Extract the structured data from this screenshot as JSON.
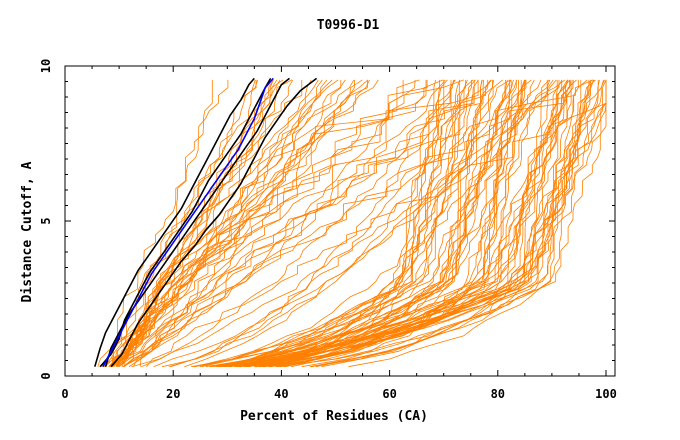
{
  "chart_data": {
    "type": "line",
    "title": "T0996-D1",
    "xlabel": "Percent of Residues (CA)",
    "ylabel": "Distance Cutoff, A",
    "xlim": [
      0,
      100
    ],
    "ylim": [
      0,
      10
    ],
    "x_ticks": [
      "0",
      "20",
      "40",
      "60",
      "80",
      "100"
    ],
    "y_ticks": [
      "0",
      "5",
      "10"
    ],
    "grid": false,
    "legend": "none",
    "colors": {
      "models": "#ff8000",
      "highlight_black": "#000000",
      "highlight_blue": "#0000ff",
      "axes": "#000000"
    },
    "highlighted_series": [
      {
        "color": "#000000",
        "points": [
          [
            5.5,
            0.3
          ],
          [
            6.5,
            0.9
          ],
          [
            7.5,
            1.4
          ],
          [
            9.0,
            1.9
          ],
          [
            10.5,
            2.4
          ],
          [
            12.0,
            2.9
          ],
          [
            13.5,
            3.4
          ],
          [
            15.5,
            3.9
          ],
          [
            17.5,
            4.4
          ],
          [
            19.5,
            4.9
          ],
          [
            21.5,
            5.4
          ],
          [
            23.0,
            5.9
          ],
          [
            24.5,
            6.4
          ],
          [
            26.0,
            6.9
          ],
          [
            27.5,
            7.4
          ],
          [
            29.0,
            7.9
          ],
          [
            30.5,
            8.4
          ],
          [
            32.5,
            8.9
          ],
          [
            34.0,
            9.4
          ],
          [
            35.0,
            9.6
          ]
        ]
      },
      {
        "color": "#000000",
        "points": [
          [
            7.5,
            0.3
          ],
          [
            8.5,
            0.9
          ],
          [
            10.0,
            1.4
          ],
          [
            11.5,
            1.9
          ],
          [
            13.5,
            2.4
          ],
          [
            15.5,
            2.9
          ],
          [
            17.5,
            3.4
          ],
          [
            19.5,
            3.9
          ],
          [
            21.5,
            4.4
          ],
          [
            23.5,
            4.9
          ],
          [
            25.5,
            5.4
          ],
          [
            27.5,
            5.9
          ],
          [
            29.5,
            6.4
          ],
          [
            31.5,
            6.9
          ],
          [
            33.5,
            7.4
          ],
          [
            35.5,
            7.9
          ],
          [
            37.0,
            8.4
          ],
          [
            38.5,
            8.9
          ],
          [
            40.0,
            9.4
          ],
          [
            41.5,
            9.6
          ]
        ]
      },
      {
        "color": "#000000",
        "points": [
          [
            6.5,
            0.3
          ],
          [
            8.5,
            0.7
          ],
          [
            10.0,
            1.2
          ],
          [
            11.0,
            1.8
          ],
          [
            12.5,
            2.3
          ],
          [
            14.0,
            2.8
          ],
          [
            15.5,
            3.3
          ],
          [
            17.5,
            3.8
          ],
          [
            19.5,
            4.3
          ],
          [
            21.5,
            4.8
          ],
          [
            23.5,
            5.3
          ],
          [
            25.0,
            5.8
          ],
          [
            26.5,
            6.3
          ],
          [
            28.5,
            6.8
          ],
          [
            30.5,
            7.3
          ],
          [
            32.5,
            7.8
          ],
          [
            34.0,
            8.3
          ],
          [
            35.5,
            8.8
          ],
          [
            37.0,
            9.3
          ],
          [
            38.0,
            9.6
          ]
        ]
      },
      {
        "color": "#000000",
        "points": [
          [
            8.5,
            0.3
          ],
          [
            10.5,
            0.7
          ],
          [
            12.0,
            1.2
          ],
          [
            13.5,
            1.7
          ],
          [
            15.5,
            2.2
          ],
          [
            17.5,
            2.7
          ],
          [
            19.5,
            3.2
          ],
          [
            21.5,
            3.7
          ],
          [
            24.0,
            4.2
          ],
          [
            26.0,
            4.7
          ],
          [
            28.5,
            5.2
          ],
          [
            30.5,
            5.7
          ],
          [
            32.5,
            6.2
          ],
          [
            34.0,
            6.7
          ],
          [
            35.5,
            7.2
          ],
          [
            37.0,
            7.7
          ],
          [
            39.0,
            8.2
          ],
          [
            41.0,
            8.7
          ],
          [
            43.5,
            9.2
          ],
          [
            46.5,
            9.6
          ]
        ]
      },
      {
        "color": "#0000ff",
        "points": [
          [
            7.0,
            0.3
          ],
          [
            8.5,
            0.8
          ],
          [
            10.0,
            1.3
          ],
          [
            11.5,
            1.8
          ],
          [
            13.0,
            2.3
          ],
          [
            14.5,
            2.8
          ],
          [
            16.0,
            3.3
          ],
          [
            18.0,
            3.8
          ],
          [
            20.0,
            4.3
          ],
          [
            22.0,
            4.8
          ],
          [
            24.0,
            5.3
          ],
          [
            26.0,
            5.8
          ],
          [
            28.0,
            6.3
          ],
          [
            30.0,
            6.8
          ],
          [
            32.0,
            7.3
          ],
          [
            33.5,
            7.8
          ],
          [
            35.0,
            8.3
          ],
          [
            36.0,
            8.8
          ],
          [
            37.0,
            9.3
          ],
          [
            38.5,
            9.6
          ]
        ]
      }
    ]
  }
}
